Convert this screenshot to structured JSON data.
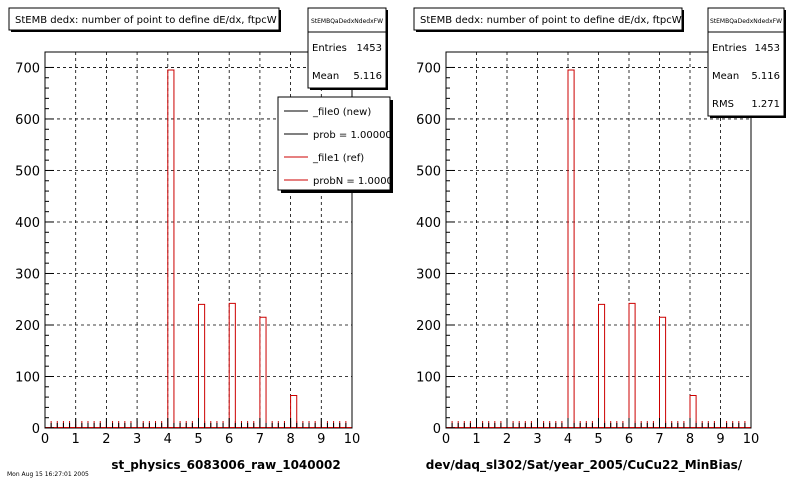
{
  "chart_data": [
    {
      "type": "bar",
      "title": "StEMB dedx: number of point to define dE/dx, ftpcW",
      "xlabel": "st_physics_6083006_raw_1040002",
      "ylabel": "",
      "xlim": [
        0,
        10
      ],
      "ylim": [
        0,
        730
      ],
      "x_ticks": [
        "0",
        "1",
        "2",
        "3",
        "4",
        "5",
        "6",
        "7",
        "8",
        "9",
        "10"
      ],
      "y_ticks": [
        "0",
        "100",
        "200",
        "300",
        "400",
        "500",
        "600",
        "700"
      ],
      "bins": [
        {
          "x": 4.1,
          "value": 695
        },
        {
          "x": 5.1,
          "value": 240
        },
        {
          "x": 6.1,
          "value": 242
        },
        {
          "x": 7.1,
          "value": 215
        },
        {
          "x": 8.1,
          "value": 63
        }
      ],
      "bin_width": 0.2,
      "grid": true,
      "stats": {
        "name": "StEMBQaDedxNdedxFW",
        "rows": [
          {
            "label": "Entries",
            "value": "1453"
          },
          {
            "label": "Mean",
            "value": "5.116"
          }
        ]
      },
      "legend": {
        "placement": "top-right",
        "entries": [
          {
            "label": "_file0 (new)",
            "color": "#000000"
          },
          {
            "label": "prob = 1.000000",
            "color": "#000000"
          },
          {
            "label": "_file1 (ref)",
            "color": "#cc0000"
          },
          {
            "label": "probN = 1.000000",
            "color": "#cc0000"
          }
        ]
      }
    },
    {
      "type": "bar",
      "title": "StEMB dedx: number of point to define dE/dx, ftpcW",
      "xlabel": "dev/daq_sl302/Sat/year_2005/CuCu22_MinBias/",
      "ylabel": "",
      "xlim": [
        0,
        10
      ],
      "ylim": [
        0,
        730
      ],
      "x_ticks": [
        "0",
        "1",
        "2",
        "3",
        "4",
        "5",
        "6",
        "7",
        "8",
        "9",
        "10"
      ],
      "y_ticks": [
        "0",
        "100",
        "200",
        "300",
        "400",
        "500",
        "600",
        "700"
      ],
      "bins": [
        {
          "x": 4.1,
          "value": 695
        },
        {
          "x": 5.1,
          "value": 240
        },
        {
          "x": 6.1,
          "value": 242
        },
        {
          "x": 7.1,
          "value": 215
        },
        {
          "x": 8.1,
          "value": 63
        }
      ],
      "bin_width": 0.2,
      "grid": true,
      "stats": {
        "name": "StEMBQaDedxNdedxFW",
        "rows": [
          {
            "label": "Entries",
            "value": "1453"
          },
          {
            "label": "Mean",
            "value": "5.116"
          },
          {
            "label": "RMS",
            "value": "1.271"
          }
        ]
      }
    }
  ],
  "footer": {
    "timestamp": "Mon Aug 15 16:27:01 2005"
  },
  "colors": {
    "hist_line": "#cc0000",
    "axis": "#000000",
    "grid": "#000000",
    "background": "#ffffff"
  }
}
